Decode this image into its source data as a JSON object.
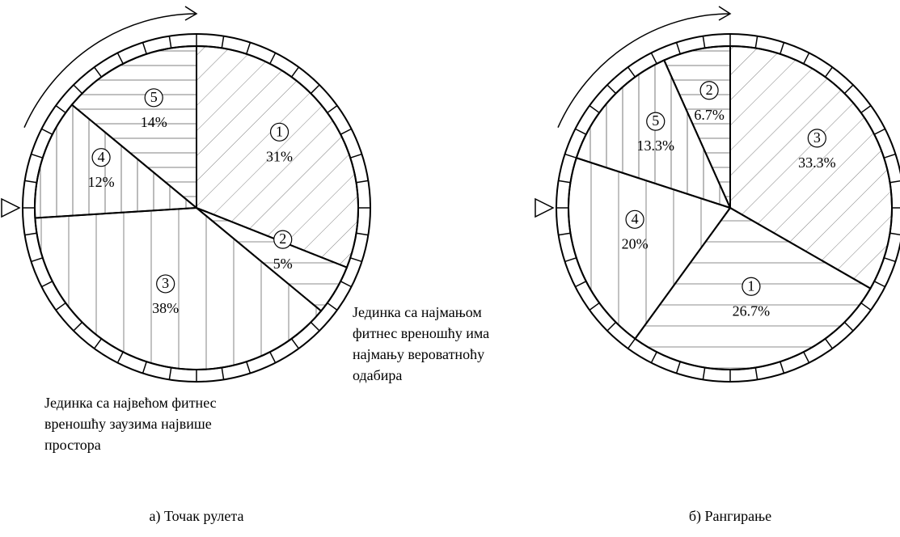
{
  "chart_data": [
    {
      "type": "pie",
      "title": "а) Точак рулета",
      "categories": [
        "1",
        "2",
        "3",
        "4",
        "5"
      ],
      "values": [
        31,
        5,
        38,
        12,
        14
      ],
      "value_labels": [
        "31%",
        "5%",
        "38%",
        "12%",
        "14%"
      ],
      "annotations": [
        {
          "lines": [
            "Јединка са најмањом",
            "фитнес вреношћу има",
            "најмању вероватноћу",
            "одабира"
          ]
        },
        {
          "lines": [
            "Јединка са највећом фитнес",
            "вреношћу заузима највише",
            "простора"
          ]
        }
      ]
    },
    {
      "type": "pie",
      "title": "б) Рангирање",
      "categories": [
        "3",
        "1",
        "4",
        "5",
        "2"
      ],
      "values": [
        33.3,
        26.7,
        20,
        13.3,
        6.7
      ],
      "value_labels": [
        "33.3%",
        "26.7%",
        "20%",
        "13.3%",
        "6.7%"
      ]
    }
  ]
}
